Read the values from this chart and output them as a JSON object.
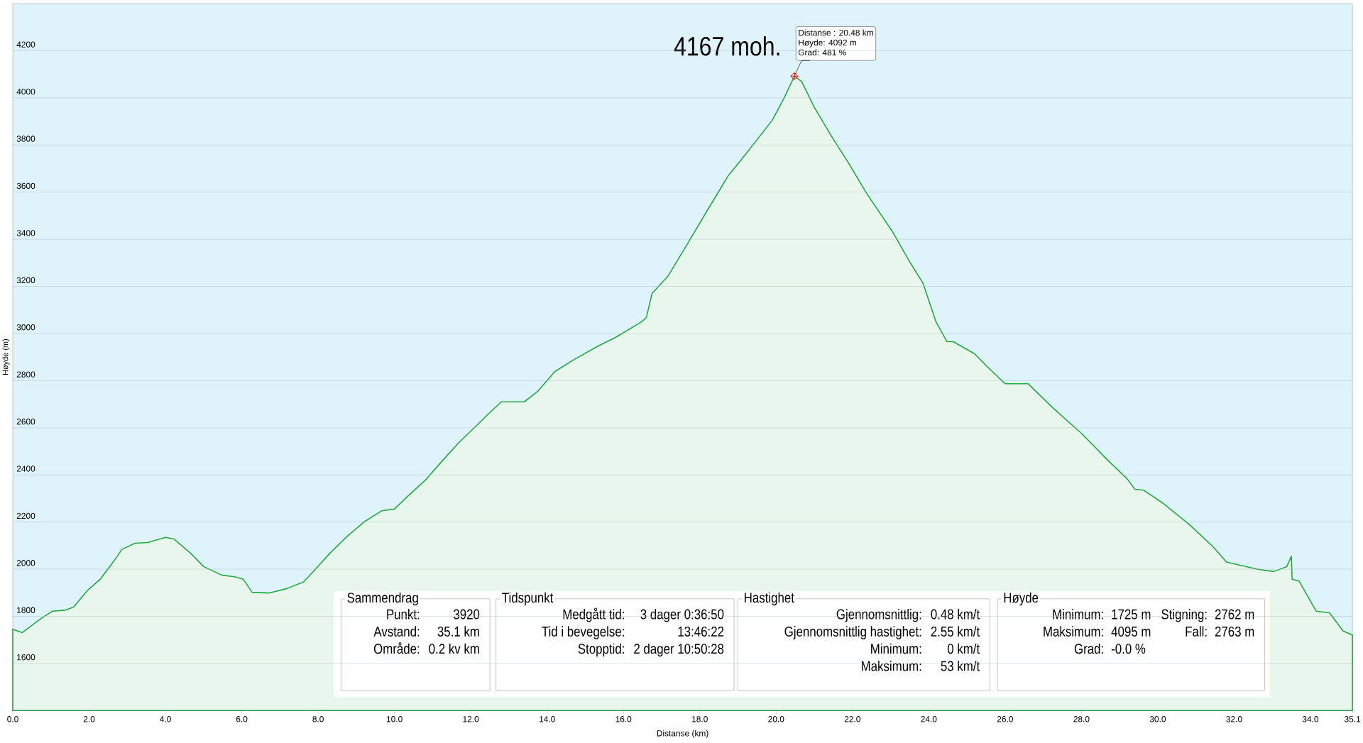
{
  "chart_data": {
    "type": "area",
    "xlabel": "Distanse (km)",
    "ylabel": "Høyde (m)",
    "xlim": [
      0,
      35.1
    ],
    "ylim": [
      1400,
      4400
    ],
    "xticks": [
      {
        "value": 0,
        "label": "0.0"
      },
      {
        "value": 2,
        "label": "2.0"
      },
      {
        "value": 4,
        "label": "4.0"
      },
      {
        "value": 6,
        "label": "6.0"
      },
      {
        "value": 8,
        "label": "8.0"
      },
      {
        "value": 10,
        "label": "10.0"
      },
      {
        "value": 12,
        "label": "12.0"
      },
      {
        "value": 14,
        "label": "14.0"
      },
      {
        "value": 16,
        "label": "16.0"
      },
      {
        "value": 18,
        "label": "18.0"
      },
      {
        "value": 20,
        "label": "20.0"
      },
      {
        "value": 22,
        "label": "22.0"
      },
      {
        "value": 24,
        "label": "24.0"
      },
      {
        "value": 26,
        "label": "26.0"
      },
      {
        "value": 28,
        "label": "28.0"
      },
      {
        "value": 30,
        "label": "30.0"
      },
      {
        "value": 32,
        "label": "32.0"
      },
      {
        "value": 34,
        "label": "34.0"
      },
      35.1
    ],
    "yticks": [
      1600,
      1800,
      2000,
      2200,
      2400,
      2600,
      2800,
      3000,
      3200,
      3400,
      3600,
      3800,
      4000,
      4200
    ],
    "grid": "y",
    "x": [
      0,
      0.25,
      0.7,
      1.04,
      1.38,
      1.6,
      1.95,
      2.29,
      2.63,
      2.86,
      3.2,
      3.54,
      4.0,
      4.22,
      4.67,
      5.0,
      5.47,
      5.81,
      6.04,
      6.27,
      6.72,
      7.17,
      7.62,
      7.85,
      8.3,
      8.76,
      9.21,
      9.67,
      10.0,
      10.35,
      10.8,
      11.25,
      11.7,
      12.17,
      12.4,
      12.8,
      13.4,
      13.75,
      14.2,
      14.66,
      15.34,
      15.8,
      16.47,
      16.6,
      16.75,
      17.16,
      17.6,
      18.2,
      18.74,
      19.2,
      19.9,
      20.2,
      20.48,
      20.67,
      21.0,
      21.47,
      21.9,
      22.37,
      23.05,
      23.5,
      23.85,
      24.19,
      24.48,
      24.64,
      25.2,
      25.55,
      26.0,
      26.6,
      27.25,
      28.0,
      28.73,
      29.2,
      29.4,
      29.63,
      30.1,
      30.8,
      31.45,
      31.8,
      32.6,
      33.04,
      33.38,
      33.5,
      33.52,
      33.7,
      34.15,
      34.5,
      34.85,
      35.1
    ],
    "series": [
      {
        "color": "#22a845",
        "values": [
          1745,
          1731,
          1786,
          1822,
          1826,
          1840,
          1909,
          1957,
          2030,
          2084,
          2110,
          2113,
          2135,
          2128,
          2066,
          2011,
          1975,
          1968,
          1957,
          1902,
          1899,
          1917,
          1946,
          1986,
          2066,
          2139,
          2201,
          2248,
          2255,
          2310,
          2376,
          2459,
          2539,
          2612,
          2649,
          2710,
          2710,
          2754,
          2838,
          2885,
          2947,
          2984,
          3049,
          3067,
          3170,
          3242,
          3359,
          3523,
          3668,
          3760,
          3905,
          3996,
          4092,
          4069,
          3960,
          3832,
          3723,
          3595,
          3432,
          3304,
          3213,
          3049,
          2965,
          2965,
          2914,
          2856,
          2787,
          2787,
          2685,
          2576,
          2456,
          2383,
          2339,
          2335,
          2284,
          2193,
          2095,
          2030,
          2000,
          1990,
          2011,
          2055,
          1957,
          1950,
          1822,
          1815,
          1738,
          1720
        ]
      }
    ],
    "annotations": [
      "4167 moh.",
      "Distanse : 20.48 km",
      "Høyde: 4092 m",
      {
        "text": "Grad: 481 %",
        "x": 20.48,
        "y": 4092
      },
      "Sammendrag",
      "Punkt:",
      "3920",
      "Avstand:",
      "35.1 km",
      "Område:",
      "0.2 kv km",
      "Tidspunkt",
      "Medgått tid:",
      "3 dager 0:36:50",
      "Tid i bevegelse:",
      "13:46:22",
      "Stopptid:",
      "2 dager 10:50:28",
      "Hastighet",
      "Gjennomsnittlig:",
      "0.48 km/t",
      "Gjennomsnittlig hastighet:",
      "2.55 km/t",
      "Minimum:",
      "0 km/t",
      "Maksimum:",
      "53 km/t",
      "Høyde",
      "Minimum:",
      "1725 m",
      "Maksimum:",
      "4095 m",
      "Grad:",
      "-0.0 %",
      "Stigning:",
      "2762 m",
      "Fall:",
      "2763 m"
    ]
  }
}
